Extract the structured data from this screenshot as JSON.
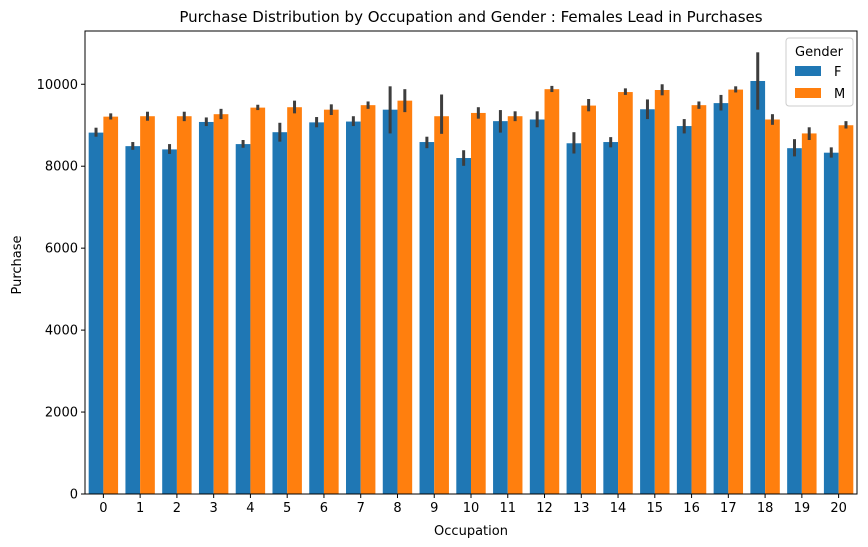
{
  "chart_data": {
    "type": "bar",
    "title": "Purchase Distribution by Occupation and Gender : Females Lead in Purchases",
    "xlabel": "Occupation",
    "ylabel": "Purchase",
    "ylim": [
      0,
      11300
    ],
    "yticks": [
      0,
      2000,
      4000,
      6000,
      8000,
      10000
    ],
    "categories": [
      "0",
      "1",
      "2",
      "3",
      "4",
      "5",
      "6",
      "7",
      "8",
      "9",
      "10",
      "11",
      "12",
      "13",
      "14",
      "15",
      "16",
      "17",
      "18",
      "19",
      "20"
    ],
    "legend": {
      "title": "Gender",
      "placement": "top-right"
    },
    "grid": false,
    "series": [
      {
        "name": "F",
        "color": "#1f77b4",
        "values": [
          8820,
          8490,
          8410,
          9080,
          8540,
          8830,
          9070,
          9090,
          9380,
          8590,
          8200,
          9100,
          9140,
          8560,
          8590,
          9390,
          8980,
          9540,
          10080,
          8440,
          8330
        ],
        "err_low": [
          8720,
          8400,
          8300,
          8980,
          8450,
          8600,
          8950,
          8980,
          8800,
          8440,
          8010,
          8820,
          8950,
          8310,
          8460,
          9150,
          8800,
          9360,
          9380,
          8240,
          8210
        ],
        "err_high": [
          8940,
          8590,
          8540,
          9190,
          8640,
          9060,
          9200,
          9220,
          9950,
          8720,
          8390,
          9370,
          9340,
          8830,
          8710,
          9630,
          9150,
          9740,
          10780,
          8660,
          8460
        ]
      },
      {
        "name": "M",
        "color": "#ff7f0e",
        "values": [
          9210,
          9220,
          9220,
          9270,
          9430,
          9440,
          9380,
          9490,
          9600,
          9220,
          9300,
          9220,
          9880,
          9480,
          9810,
          9860,
          9490,
          9870,
          9140,
          8800,
          9000
        ],
        "err_low": [
          9140,
          9110,
          9100,
          9150,
          9370,
          9290,
          9250,
          9400,
          9320,
          8790,
          9160,
          9100,
          9810,
          9340,
          9740,
          9730,
          9400,
          9800,
          9010,
          8640,
          8920
        ],
        "err_high": [
          9290,
          9330,
          9330,
          9400,
          9500,
          9600,
          9510,
          9580,
          9880,
          9750,
          9440,
          9340,
          9960,
          9640,
          9900,
          10000,
          9580,
          9950,
          9270,
          8950,
          9100
        ]
      }
    ]
  }
}
